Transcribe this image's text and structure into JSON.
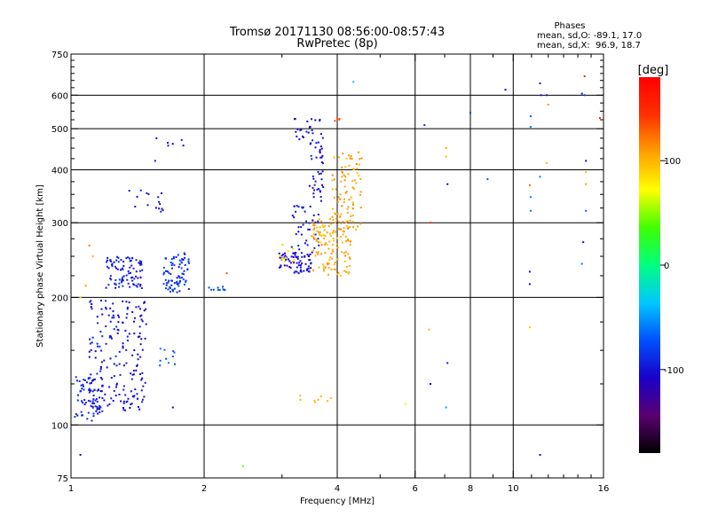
{
  "chart_data": {
    "type": "scatter",
    "title": "Tromsø 20171130 08:56:00-08:57:43",
    "subtitle": "RwPretec (8p)",
    "xlabel": "Frequency [MHz]",
    "ylabel": "Stationary phase Virtual Height [km]",
    "x_scale": "log",
    "y_scale": "log",
    "xlim": [
      1,
      16
    ],
    "ylim": [
      75,
      750
    ],
    "x_ticks": [
      1,
      2,
      4,
      6,
      8,
      10,
      16
    ],
    "x_tick_labels": [
      "1",
      "2",
      "4",
      "6",
      "8",
      "10",
      "16"
    ],
    "x_minor_ticks": [
      3,
      5,
      7,
      9,
      11,
      12,
      13,
      14,
      15
    ],
    "x_grid": [
      2,
      4,
      6,
      8,
      10,
      16
    ],
    "y_ticks": [
      75,
      100,
      200,
      300,
      400,
      500,
      600,
      750
    ],
    "y_tick_labels": [
      "75",
      "100",
      "200",
      "300",
      "400",
      "500",
      "600",
      "750"
    ],
    "y_minor_ticks": [
      125,
      150,
      175,
      225,
      250,
      275,
      325,
      350,
      375,
      425,
      450,
      475,
      525,
      550,
      575,
      625,
      650,
      675,
      700,
      725
    ],
    "y_grid": [
      100,
      200,
      300,
      400,
      500,
      600
    ],
    "grid": true,
    "phase_info": {
      "heading": "Phases",
      "line_o": "mean, sd,O: -89.1, 17.0",
      "line_x": "mean, sd,X:  96.9, 18.7"
    },
    "colorbar": {
      "label": "[deg]",
      "range": [
        -180,
        180
      ],
      "ticks": [
        100,
        0,
        -100
      ],
      "tick_labels": [
        "100",
        "0",
        "-100"
      ],
      "colors": [
        "#000000",
        "#5a0070",
        "#1a00c8",
        "#0050ff",
        "#00c8ff",
        "#00ff80",
        "#40ff00",
        "#ffff00",
        "#ffa000",
        "#ff3000",
        "#ff0000"
      ]
    },
    "series": [
      {
        "kind": "cluster",
        "x0": 1.02,
        "x1": 1.18,
        "y0": 102,
        "y1": 130,
        "n": 70,
        "phase": -95,
        "sd": 15
      },
      {
        "kind": "cluster",
        "x0": 1.1,
        "x1": 1.48,
        "y0": 108,
        "y1": 200,
        "n": 190,
        "phase": -100,
        "sd": 12
      },
      {
        "kind": "cluster",
        "x0": 1.2,
        "x1": 1.45,
        "y0": 210,
        "y1": 250,
        "n": 90,
        "phase": -95,
        "sd": 14
      },
      {
        "kind": "cluster",
        "x0": 1.62,
        "x1": 1.85,
        "y0": 205,
        "y1": 255,
        "n": 80,
        "phase": -85,
        "sd": 18
      },
      {
        "kind": "cluster",
        "x0": 1.3,
        "x1": 1.62,
        "y0": 318,
        "y1": 360,
        "n": 16,
        "phase": -100,
        "sd": 10
      },
      {
        "kind": "cluster",
        "x0": 1.55,
        "x1": 1.85,
        "y0": 455,
        "y1": 475,
        "n": 6,
        "phase": -100,
        "sd": 8
      },
      {
        "kind": "cluster",
        "x0": 1.58,
        "x1": 1.72,
        "y0": 138,
        "y1": 152,
        "n": 10,
        "phase": -70,
        "sd": 15
      },
      {
        "kind": "cluster",
        "x0": 2.05,
        "x1": 2.25,
        "y0": 208,
        "y1": 212,
        "n": 10,
        "phase": -75,
        "sd": 6
      },
      {
        "kind": "cluster",
        "x0": 2.95,
        "x1": 3.5,
        "y0": 228,
        "y1": 255,
        "n": 70,
        "phase": -105,
        "sd": 12
      },
      {
        "kind": "cluster",
        "x0": 3.15,
        "x1": 3.65,
        "y0": 255,
        "y1": 330,
        "n": 40,
        "phase": -100,
        "sd": 12
      },
      {
        "kind": "cluster",
        "x0": 3.45,
        "x1": 3.72,
        "y0": 330,
        "y1": 540,
        "n": 50,
        "phase": -100,
        "sd": 10
      },
      {
        "kind": "cluster",
        "x0": 3.15,
        "x1": 3.5,
        "y0": 470,
        "y1": 530,
        "n": 14,
        "phase": -105,
        "sd": 8
      },
      {
        "kind": "cluster",
        "x0": 2.95,
        "x1": 3.2,
        "y0": 240,
        "y1": 270,
        "n": 10,
        "phase": 85,
        "sd": 10
      },
      {
        "kind": "cluster",
        "x0": 3.5,
        "x1": 4.3,
        "y0": 225,
        "y1": 310,
        "n": 120,
        "phase": 105,
        "sd": 12
      },
      {
        "kind": "cluster",
        "x0": 3.9,
        "x1": 4.55,
        "y0": 285,
        "y1": 440,
        "n": 90,
        "phase": 108,
        "sd": 12
      },
      {
        "kind": "cluster",
        "x0": 3.95,
        "x1": 4.08,
        "y0": 515,
        "y1": 530,
        "n": 4,
        "phase": 135,
        "sd": 10
      },
      {
        "kind": "cluster",
        "x0": 3.1,
        "x1": 3.9,
        "y0": 113,
        "y1": 118,
        "n": 8,
        "phase": 100,
        "sd": 6
      },
      {
        "kind": "points",
        "pts": [
          [
            1.05,
            85,
            -120
          ],
          [
            1.1,
            265,
            120
          ],
          [
            1.12,
            250,
            100
          ],
          [
            1.08,
            213,
            110
          ],
          [
            1.05,
            200,
            90
          ],
          [
            1.55,
            420,
            -100
          ],
          [
            1.7,
            110,
            -150
          ],
          [
            2.25,
            228,
            135
          ],
          [
            2.45,
            80,
            40
          ],
          [
            4.35,
            645,
            -30
          ],
          [
            5.7,
            112,
            80
          ],
          [
            6.3,
            510,
            -90
          ],
          [
            6.5,
            300,
            150
          ],
          [
            6.45,
            168,
            100
          ],
          [
            6.5,
            125,
            -110
          ],
          [
            7.05,
            450,
            110
          ],
          [
            7.05,
            430,
            100
          ],
          [
            7.1,
            370,
            -110
          ],
          [
            7.1,
            140,
            -100
          ],
          [
            7.05,
            110,
            -50
          ],
          [
            8.0,
            545,
            -80
          ],
          [
            8.75,
            380,
            -70
          ],
          [
            9.6,
            618,
            -110
          ],
          [
            10.95,
            535,
            -70
          ],
          [
            10.95,
            505,
            -60
          ],
          [
            10.9,
            368,
            130
          ],
          [
            10.95,
            345,
            -60
          ],
          [
            10.95,
            320,
            -60
          ],
          [
            10.9,
            230,
            -120
          ],
          [
            10.9,
            215,
            -110
          ],
          [
            10.9,
            170,
            90
          ],
          [
            11.5,
            640,
            -110
          ],
          [
            11.55,
            600,
            -100
          ],
          [
            11.9,
            600,
            -120
          ],
          [
            12.0,
            570,
            110
          ],
          [
            11.9,
            415,
            100
          ],
          [
            11.5,
            385,
            -60
          ],
          [
            11.5,
            85,
            -110
          ],
          [
            14.3,
            605,
            -100
          ],
          [
            14.5,
            600,
            -90
          ],
          [
            14.5,
            665,
            160
          ],
          [
            14.6,
            420,
            -110
          ],
          [
            14.6,
            395,
            100
          ],
          [
            14.6,
            370,
            110
          ],
          [
            14.6,
            320,
            -70
          ],
          [
            14.4,
            270,
            -110
          ],
          [
            14.3,
            240,
            -60
          ],
          [
            15.7,
            530,
            160
          ]
        ]
      }
    ]
  }
}
